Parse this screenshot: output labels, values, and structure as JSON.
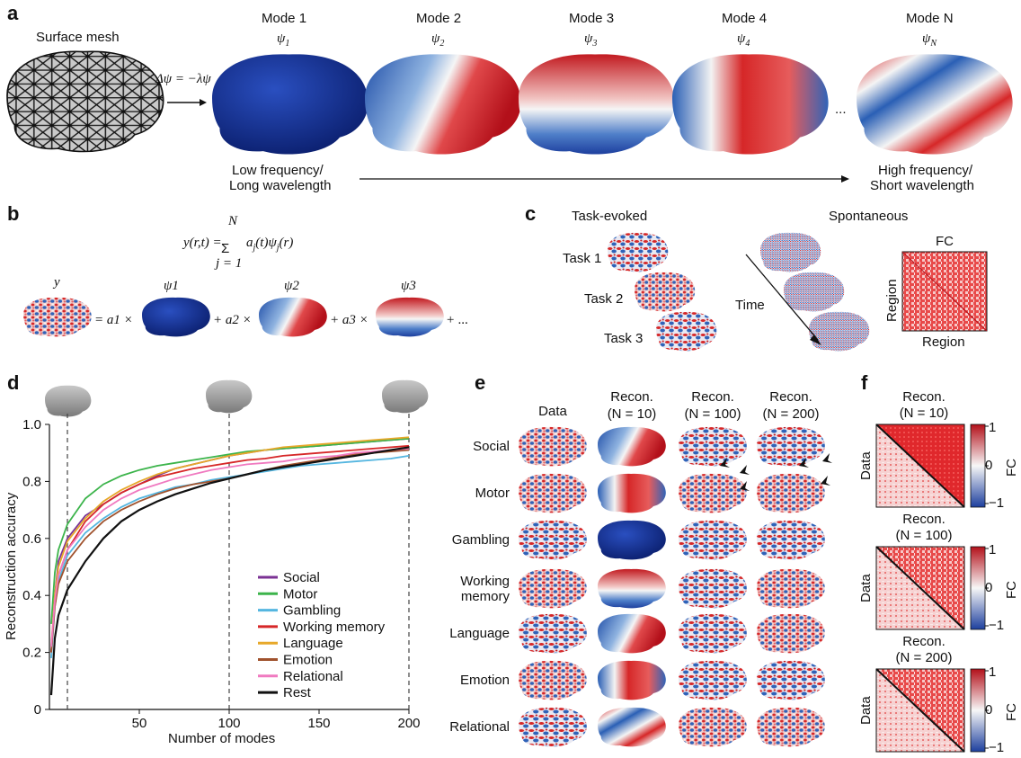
{
  "panels": {
    "a": "a",
    "b": "b",
    "c": "c",
    "d": "d",
    "e": "e",
    "f": "f"
  },
  "panel_a": {
    "mesh_label": "Surface mesh",
    "equation": "Δψ = −λψ",
    "modes": [
      {
        "title": "Mode 1",
        "symbol": "ψ",
        "sub": "1"
      },
      {
        "title": "Mode 2",
        "symbol": "ψ",
        "sub": "2"
      },
      {
        "title": "Mode 3",
        "symbol": "ψ",
        "sub": "3"
      },
      {
        "title": "Mode 4",
        "symbol": "ψ",
        "sub": "4"
      },
      {
        "title": "Mode N",
        "symbol": "ψ",
        "sub": "N"
      }
    ],
    "ellipsis": "...",
    "low_freq": [
      "Low frequency/",
      "Long wavelength"
    ],
    "high_freq": [
      "High frequency/",
      "Short wavelength"
    ]
  },
  "panel_b": {
    "equation": "y(r,t) = Σ aj(t)ψj(r)",
    "sum_top": "N",
    "sum_bottom": "j = 1",
    "terms": [
      "y",
      "ψ1",
      "ψ2",
      "ψ3"
    ],
    "operators": [
      "= a1 ×",
      "+ a2 ×",
      "+ a3 ×",
      "+ ..."
    ]
  },
  "panel_c": {
    "task_title": "Task-evoked",
    "spont_title": "Spontaneous",
    "tasks": [
      "Task 1",
      "Task 2",
      "Task 3"
    ],
    "time_label": "Time",
    "fc_title": "FC",
    "fc_ylabel": "Region",
    "fc_xlabel": "Region"
  },
  "chart_data": {
    "type": "line",
    "title": "",
    "xlabel": "Number of modes",
    "ylabel": "Reconstruction accuracy",
    "xlim": [
      0,
      200
    ],
    "ylim": [
      0,
      1.0
    ],
    "xticks": [
      50,
      100,
      150,
      200
    ],
    "yticks": [
      "0",
      "0.2",
      "0.4",
      "0.6",
      "0.8",
      "1.0"
    ],
    "reference_lines_x": [
      10,
      100,
      200
    ],
    "legend_position": "bottom-right",
    "x": [
      1,
      3,
      5,
      10,
      20,
      30,
      40,
      50,
      60,
      70,
      80,
      90,
      100,
      110,
      120,
      130,
      140,
      150,
      160,
      170,
      180,
      190,
      200
    ],
    "series": [
      {
        "name": "Social",
        "color": "#7b3294",
        "values": [
          0.2,
          0.4,
          0.52,
          0.6,
          0.68,
          0.72,
          0.76,
          0.79,
          0.82,
          0.845,
          0.86,
          0.875,
          0.89,
          0.9,
          0.91,
          0.915,
          0.92,
          0.925,
          0.93,
          0.935,
          0.94,
          0.945,
          0.95
        ]
      },
      {
        "name": "Motor",
        "color": "#3cb44b",
        "values": [
          0.3,
          0.48,
          0.56,
          0.65,
          0.74,
          0.79,
          0.82,
          0.84,
          0.855,
          0.865,
          0.875,
          0.885,
          0.895,
          0.905,
          0.91,
          0.915,
          0.92,
          0.925,
          0.93,
          0.935,
          0.94,
          0.945,
          0.95
        ]
      },
      {
        "name": "Gambling",
        "color": "#55b6e0",
        "values": [
          0.18,
          0.36,
          0.45,
          0.54,
          0.62,
          0.67,
          0.71,
          0.74,
          0.76,
          0.78,
          0.79,
          0.805,
          0.815,
          0.825,
          0.835,
          0.845,
          0.855,
          0.86,
          0.865,
          0.87,
          0.875,
          0.88,
          0.89
        ]
      },
      {
        "name": "Working memory",
        "color": "#d62728",
        "values": [
          0.2,
          0.38,
          0.47,
          0.56,
          0.66,
          0.72,
          0.76,
          0.79,
          0.815,
          0.83,
          0.845,
          0.855,
          0.865,
          0.875,
          0.88,
          0.89,
          0.895,
          0.9,
          0.905,
          0.91,
          0.915,
          0.92,
          0.925
        ]
      },
      {
        "name": "Language",
        "color": "#e7a82a",
        "values": [
          0.22,
          0.4,
          0.5,
          0.59,
          0.67,
          0.73,
          0.77,
          0.8,
          0.825,
          0.845,
          0.86,
          0.875,
          0.89,
          0.9,
          0.91,
          0.92,
          0.925,
          0.93,
          0.935,
          0.94,
          0.945,
          0.95,
          0.955
        ]
      },
      {
        "name": "Emotion",
        "color": "#a0522d",
        "values": [
          0.2,
          0.36,
          0.44,
          0.52,
          0.6,
          0.66,
          0.7,
          0.73,
          0.755,
          0.775,
          0.79,
          0.8,
          0.81,
          0.825,
          0.84,
          0.855,
          0.865,
          0.875,
          0.885,
          0.895,
          0.9,
          0.905,
          0.91
        ]
      },
      {
        "name": "Relational",
        "color": "#f07ac0",
        "values": [
          0.22,
          0.38,
          0.47,
          0.56,
          0.64,
          0.7,
          0.74,
          0.77,
          0.79,
          0.81,
          0.825,
          0.84,
          0.85,
          0.86,
          0.865,
          0.87,
          0.88,
          0.885,
          0.89,
          0.9,
          0.905,
          0.91,
          0.915
        ]
      },
      {
        "name": "Rest",
        "color": "#111111",
        "values": [
          0.05,
          0.25,
          0.33,
          0.42,
          0.52,
          0.6,
          0.66,
          0.7,
          0.73,
          0.755,
          0.775,
          0.795,
          0.81,
          0.825,
          0.84,
          0.85,
          0.86,
          0.87,
          0.88,
          0.89,
          0.9,
          0.91,
          0.92
        ]
      }
    ]
  },
  "panel_e": {
    "columns": [
      {
        "line1": "Data",
        "line2": ""
      },
      {
        "line1": "Recon.",
        "line2": "(N = 10)"
      },
      {
        "line1": "Recon.",
        "line2": "(N = 100)"
      },
      {
        "line1": "Recon.",
        "line2": "(N = 200)"
      }
    ],
    "rows": [
      [
        "Social"
      ],
      [
        "Motor"
      ],
      [
        "Gambling"
      ],
      [
        "Working",
        "memory"
      ],
      [
        "Language"
      ],
      [
        "Emotion"
      ],
      [
        "Relational"
      ]
    ]
  },
  "panel_f": {
    "blocks": [
      {
        "title": "Recon.",
        "n": "(N = 10)"
      },
      {
        "title": "Recon.",
        "n": "(N = 100)"
      },
      {
        "title": "Recon.",
        "n": "(N = 200)"
      }
    ],
    "ylabel": "Data",
    "cbar_label": "FC",
    "cbar_ticks": [
      "1",
      "0",
      "−1"
    ]
  },
  "colors": {
    "blue": "#1d3f9e",
    "red": "#d7191c",
    "white": "#f2f2f2"
  }
}
